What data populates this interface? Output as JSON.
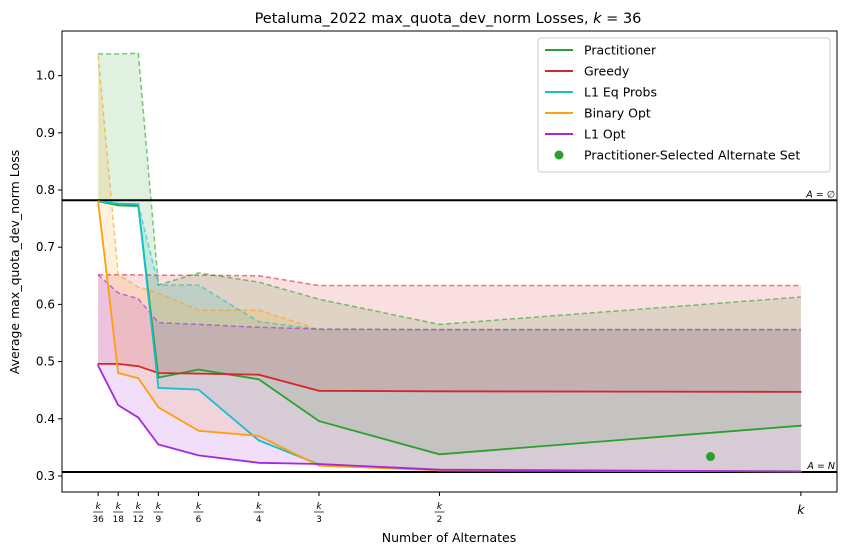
{
  "chart_data": {
    "type": "line",
    "title": "Petaluma_2022 max_quota_dev_norm Losses, k = 36",
    "title_parts": [
      "Petaluma_2022 max_quota_dev_norm Losses, ",
      "k",
      " = 36"
    ],
    "xlabel": "Number of Alternates",
    "ylabel": "Average max_quota_dev_norm Loss",
    "x_ticks": [
      {
        "x": 1,
        "label": "k/36",
        "num": "k",
        "den": "36"
      },
      {
        "x": 2,
        "label": "k/18",
        "num": "k",
        "den": "18"
      },
      {
        "x": 3,
        "label": "k/12",
        "num": "k",
        "den": "12"
      },
      {
        "x": 4,
        "label": "k/9",
        "num": "k",
        "den": "9"
      },
      {
        "x": 6,
        "label": "k/6",
        "num": "k",
        "den": "6"
      },
      {
        "x": 9,
        "label": "k/4",
        "num": "k",
        "den": "4"
      },
      {
        "x": 12,
        "label": "k/3",
        "num": "k",
        "den": "3"
      },
      {
        "x": 18,
        "label": "k/2",
        "num": "k",
        "den": "2"
      },
      {
        "x": 36,
        "label": "k",
        "num": "k",
        "den": ""
      }
    ],
    "y_ticks": [
      0.3,
      0.4,
      0.5,
      0.6,
      0.7,
      0.8,
      0.9,
      1.0
    ],
    "y_tick_labels": [
      "0.3",
      "0.4",
      "0.5",
      "0.6",
      "0.7",
      "0.8",
      "0.9",
      "1.0"
    ],
    "xlim": [
      -0.8,
      37.8
    ],
    "ylim": [
      0.272,
      1.078
    ],
    "x": [
      1,
      2,
      3,
      4,
      6,
      9,
      12,
      18,
      36
    ],
    "grid": false,
    "legend_position": "top-right",
    "series": [
      {
        "name": "Practitioner",
        "color": "#2ca02c",
        "values": [
          0.78,
          0.773,
          0.772,
          0.472,
          0.486,
          0.469,
          0.396,
          0.338,
          0.388
        ],
        "upper": [
          1.038,
          1.038,
          1.039,
          0.634,
          0.655,
          0.639,
          0.609,
          0.565,
          0.613
        ]
      },
      {
        "name": "Greedy",
        "color": "#d62728",
        "values": [
          0.496,
          0.496,
          0.492,
          0.48,
          0.479,
          0.477,
          0.449,
          0.448,
          0.447
        ],
        "upper": [
          0.652,
          0.652,
          0.652,
          0.651,
          0.651,
          0.65,
          0.633,
          0.633,
          0.633
        ]
      },
      {
        "name": "L1 Eq Probs",
        "color": "#17becf",
        "values": [
          0.78,
          0.776,
          0.775,
          0.454,
          0.451,
          0.362,
          0.32,
          0.31,
          0.308
        ],
        "upper": [
          0.78,
          0.776,
          0.775,
          0.634,
          0.634,
          0.57,
          0.556,
          0.556,
          0.556
        ]
      },
      {
        "name": "Binary Opt",
        "color": "#ff9f0f",
        "values": [
          0.78,
          0.48,
          0.471,
          0.42,
          0.379,
          0.37,
          0.318,
          0.31,
          0.308
        ],
        "upper": [
          1.035,
          0.652,
          0.63,
          0.62,
          0.59,
          0.59,
          0.556,
          0.556,
          0.556
        ]
      },
      {
        "name": "L1 Opt",
        "color": "#a428e0",
        "values": [
          0.493,
          0.424,
          0.402,
          0.355,
          0.336,
          0.323,
          0.321,
          0.311,
          0.308
        ],
        "upper": [
          0.652,
          0.62,
          0.61,
          0.568,
          0.565,
          0.56,
          0.557,
          0.556,
          0.556
        ]
      }
    ],
    "highlight_point": {
      "name": "Practitioner-Selected Alternate Set",
      "x": 31.5,
      "y": 0.334,
      "color": "#2ca02c"
    },
    "reference_lines": [
      {
        "y": 0.782,
        "label": "A = ∅",
        "color": "#000000"
      },
      {
        "y": 0.307,
        "label": "A = N",
        "color": "#000000"
      }
    ]
  }
}
